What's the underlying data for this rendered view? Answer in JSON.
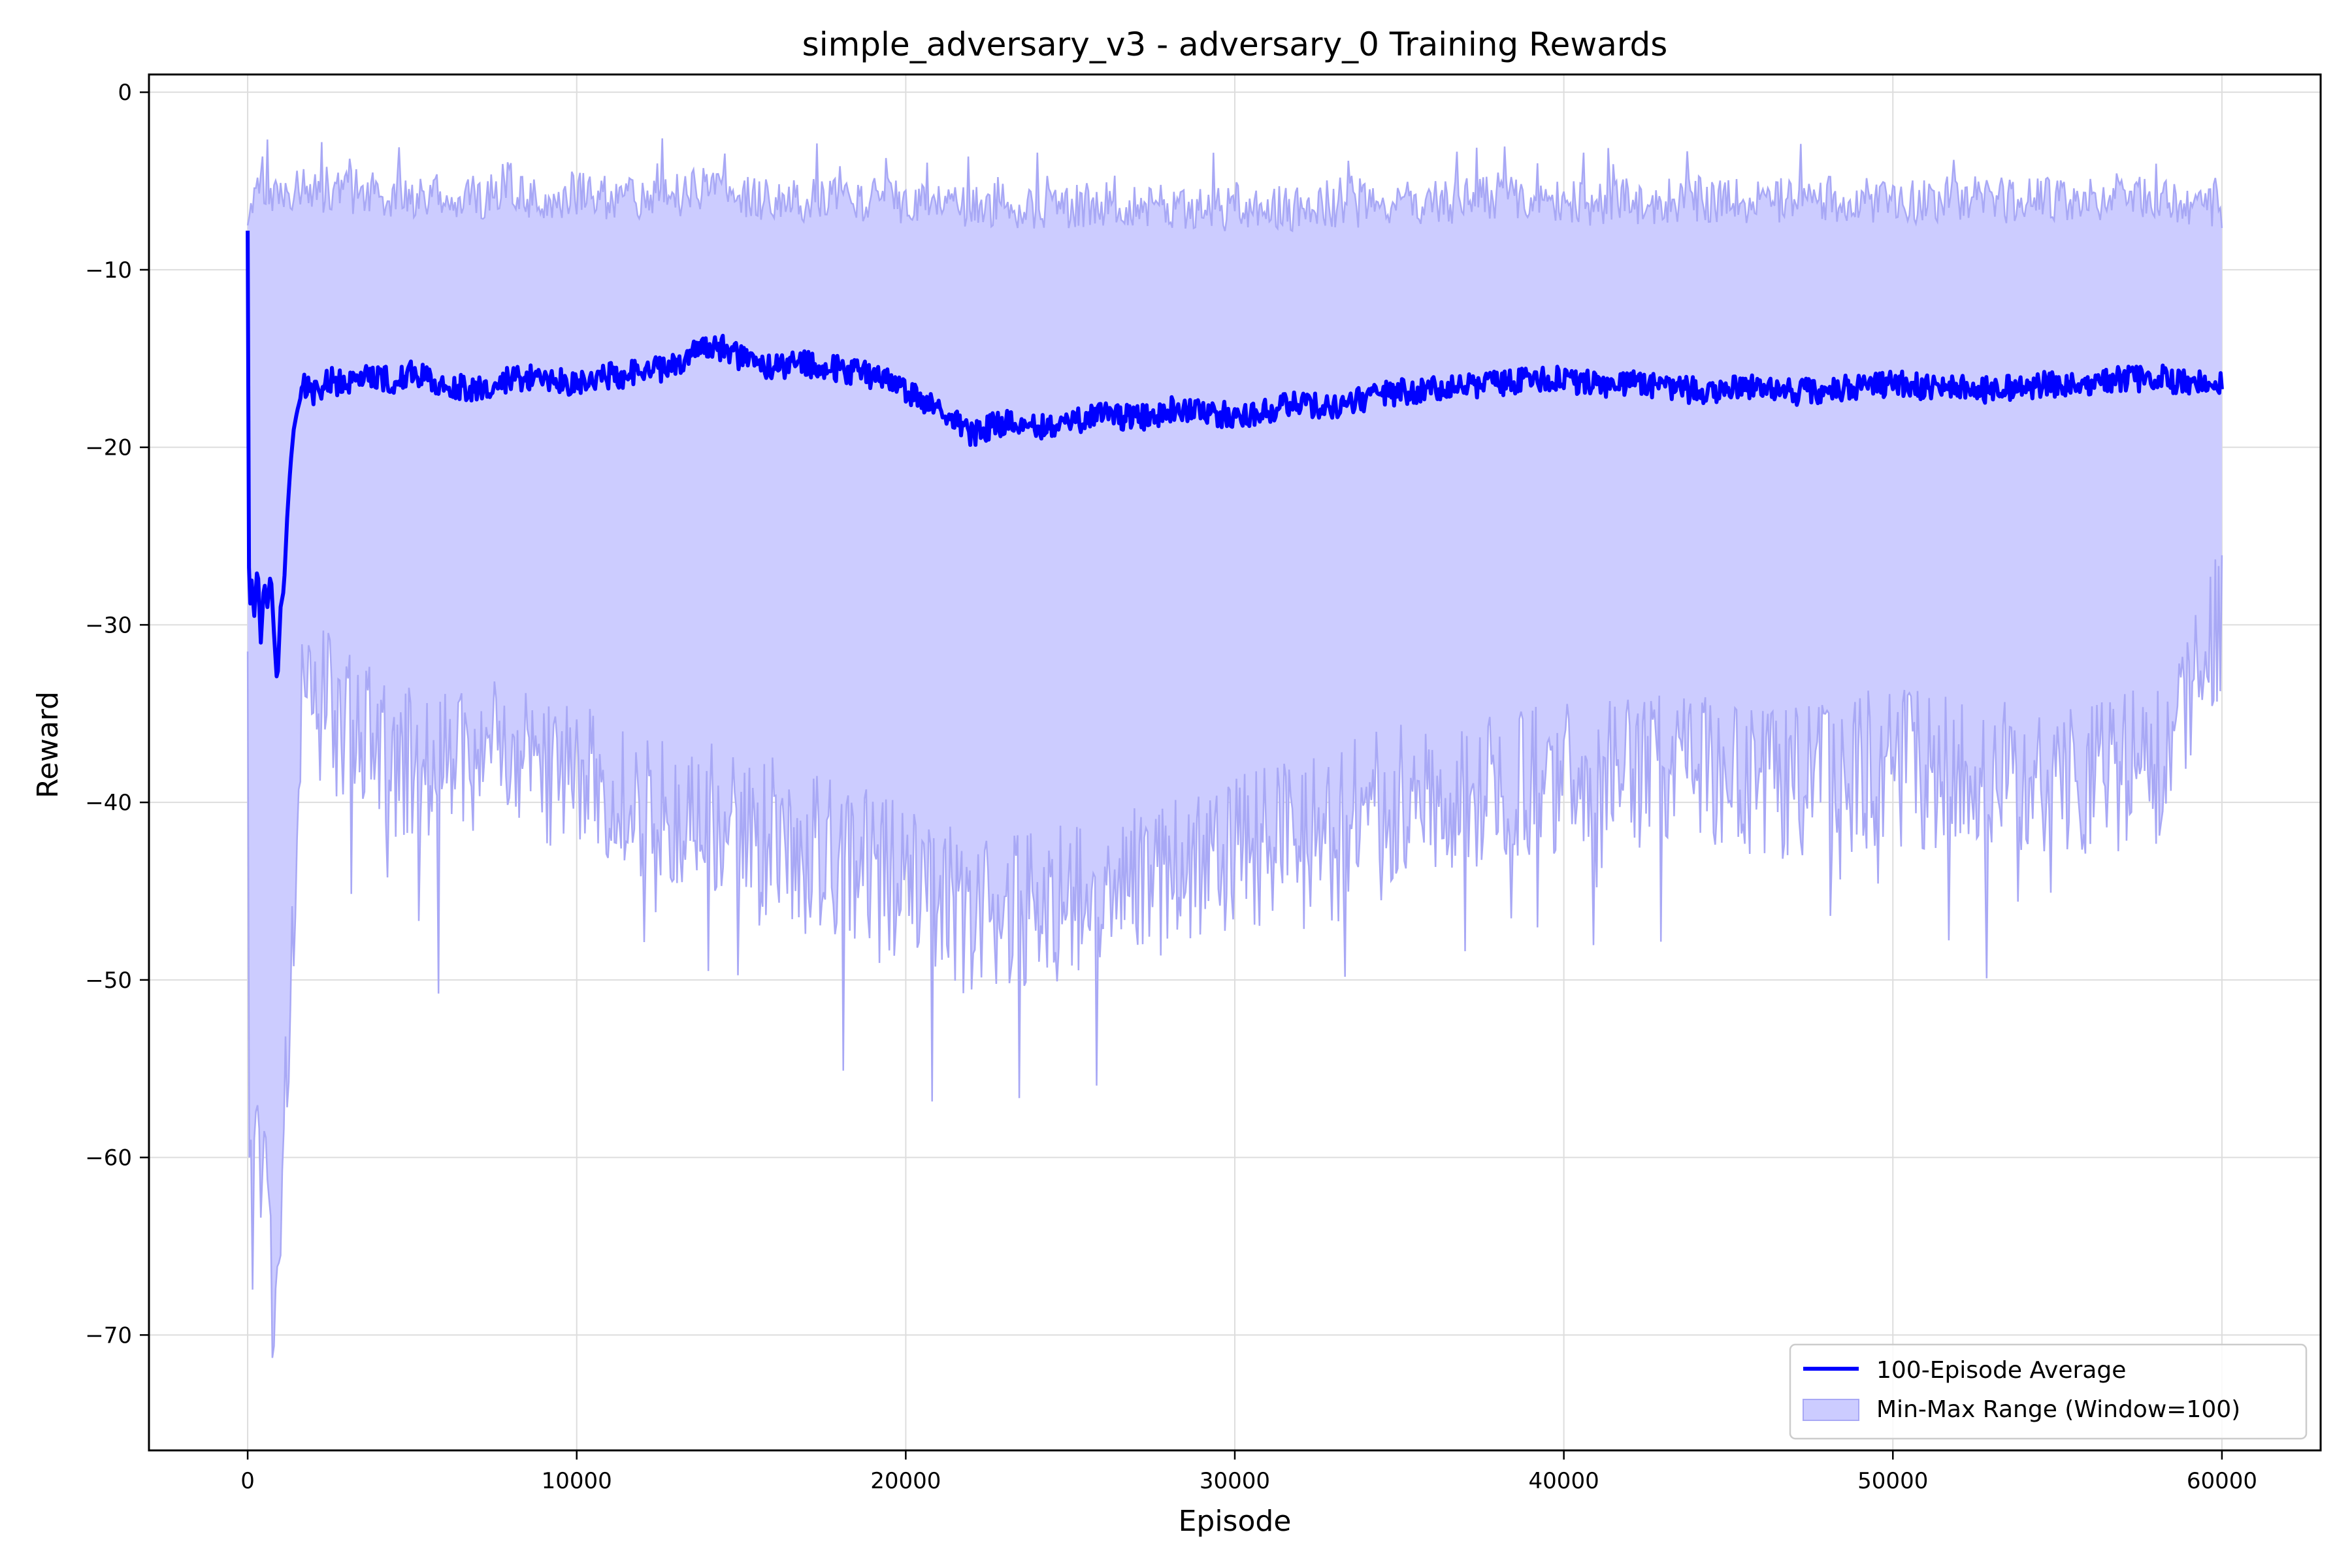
{
  "chart_data": {
    "type": "line",
    "title": "simple_adversary_v3 - adversary_0 Training Rewards",
    "xlabel": "Episode",
    "ylabel": "Reward",
    "xlim": [
      -3000,
      63000
    ],
    "ylim": [
      -76.5,
      1
    ],
    "xticks": [
      0,
      10000,
      20000,
      30000,
      40000,
      50000,
      60000
    ],
    "yticks": [
      0,
      -10,
      -20,
      -30,
      -40,
      -50,
      -60,
      -70
    ],
    "ytick_labels": [
      "0",
      "−10",
      "−20",
      "−30",
      "−40",
      "−50",
      "−60",
      "−70"
    ],
    "grid": true,
    "legend_position": "lower-right",
    "colors": {
      "average": "#0000ff",
      "range_fill": "#ccccff",
      "range_edge": "#a8a8f5"
    },
    "series": [
      {
        "name": "100-Episode Average",
        "style": "line",
        "x": [
          0,
          50,
          100,
          200,
          300,
          400,
          500,
          600,
          700,
          800,
          900,
          1000,
          1100,
          1200,
          1300,
          1400,
          1500,
          1700,
          2000,
          2500,
          3000,
          3500,
          4000,
          4500,
          5000,
          6000,
          7000,
          8000,
          9000,
          10000,
          11000,
          12000,
          13000,
          14000,
          14500,
          15000,
          16000,
          17000,
          18000,
          19000,
          20000,
          21000,
          22000,
          23000,
          24000,
          25000,
          26000,
          27000,
          28000,
          29000,
          30000,
          31000,
          32000,
          33000,
          34000,
          35000,
          36000,
          37000,
          38000,
          39000,
          40000,
          41000,
          42000,
          43000,
          44000,
          45000,
          46000,
          47000,
          48000,
          49000,
          50000,
          51000,
          52000,
          53000,
          54000,
          55000,
          56000,
          57000,
          58000,
          59000,
          60000
        ],
        "values": [
          -7.8,
          -31.5,
          -27.0,
          -29.5,
          -26.5,
          -31.0,
          -27.5,
          -29.0,
          -27.0,
          -30.5,
          -33.5,
          -29.0,
          -28.0,
          -24.0,
          -21.0,
          -19.0,
          -18.0,
          -16.5,
          -17.0,
          -16.2,
          -16.5,
          -15.8,
          -16.0,
          -16.3,
          -15.8,
          -16.5,
          -16.8,
          -16.2,
          -16.0,
          -16.4,
          -16.0,
          -15.8,
          -15.4,
          -14.2,
          -14.5,
          -15.0,
          -15.5,
          -15.3,
          -15.6,
          -16.0,
          -16.8,
          -17.8,
          -19.2,
          -18.6,
          -19.0,
          -18.5,
          -18.2,
          -18.4,
          -17.9,
          -18.1,
          -18.2,
          -18.0,
          -17.5,
          -17.7,
          -17.2,
          -16.9,
          -16.8,
          -16.6,
          -16.4,
          -16.2,
          -16.1,
          -16.5,
          -16.3,
          -16.6,
          -16.8,
          -16.7,
          -16.5,
          -16.9,
          -16.8,
          -16.6,
          -16.4,
          -16.6,
          -16.7,
          -16.8,
          -16.6,
          -16.4,
          -16.3,
          -16.2,
          -16.1,
          -16.3,
          -16.4
        ]
      },
      {
        "name": "Min-Max Range (Window=100)",
        "style": "band",
        "x": [
          0,
          50,
          150,
          300,
          500,
          700,
          900,
          1000,
          1200,
          1400,
          1500,
          1700,
          2000,
          3000,
          4000,
          5000,
          6000,
          7000,
          8000,
          9000,
          10000,
          12000,
          14000,
          16000,
          18000,
          20000,
          22000,
          24000,
          26000,
          28000,
          30000,
          32000,
          34000,
          36000,
          38000,
          40000,
          42000,
          44000,
          46000,
          48000,
          50000,
          52000,
          54000,
          56000,
          58000,
          60000
        ],
        "upper": [
          -7.5,
          -7.0,
          -5.5,
          -4.5,
          -5.0,
          -6.0,
          -6.2,
          -6.0,
          -6.3,
          -5.5,
          -5.2,
          -5.0,
          -5.5,
          -5.5,
          -5.8,
          -6.0,
          -5.8,
          -6.0,
          -5.5,
          -6.0,
          -5.8,
          -6.0,
          -5.5,
          -6.2,
          -6.0,
          -6.2,
          -6.3,
          -6.5,
          -6.3,
          -6.5,
          -6.6,
          -6.5,
          -6.3,
          -6.2,
          -6.0,
          -6.3,
          -6.2,
          -6.0,
          -6.2,
          -6.0,
          -6.2,
          -6.0,
          -6.1,
          -6.0,
          -5.8,
          -6.5
        ],
        "lower": [
          -31.5,
          -60.0,
          -58.0,
          -60.0,
          -62.0,
          -66.0,
          -70.0,
          -62.0,
          -56.0,
          -48.0,
          -40.0,
          -34.0,
          -34.0,
          -36.0,
          -37.0,
          -38.0,
          -38.0,
          -37.0,
          -38.0,
          -38.0,
          -39.0,
          -40.0,
          -41.0,
          -42.0,
          -43.0,
          -44.5,
          -46.5,
          -46.0,
          -45.0,
          -44.0,
          -43.0,
          -42.0,
          -40.5,
          -39.5,
          -39.0,
          -38.5,
          -38.0,
          -38.5,
          -39.0,
          -38.5,
          -38.0,
          -38.5,
          -39.0,
          -38.5,
          -38.0,
          -30.0
        ]
      }
    ]
  }
}
